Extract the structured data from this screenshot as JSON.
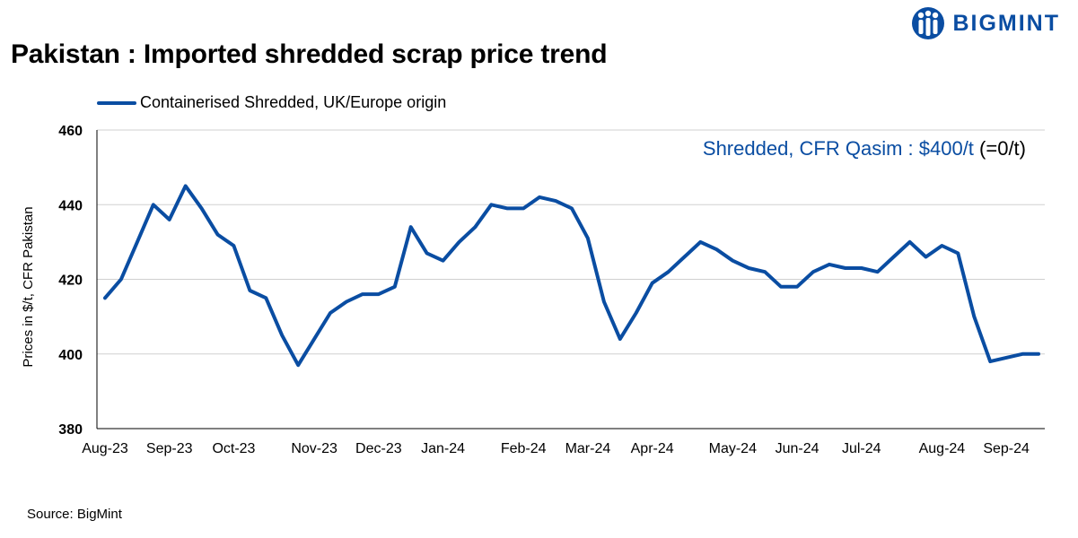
{
  "title": "Pakistan : Imported shredded scrap price trend",
  "brand": "BIGMINT",
  "source": "Source: BigMint",
  "colors": {
    "series": "#0a4da2",
    "grid": "#d0d0d0",
    "axis": "#000000"
  },
  "annotation": {
    "label": "Shredded, CFR Qasim : $400/t",
    "change": " (=0/t)"
  },
  "chart_data": {
    "type": "line",
    "title": "Pakistan : Imported shredded scrap price trend",
    "ylabel": "Prices in $/t, CFR Pakistan",
    "xlabel": "",
    "ylim": [
      380,
      460
    ],
    "yticks": [
      380,
      400,
      420,
      440,
      460
    ],
    "grid": true,
    "legend": "top-left",
    "x_tick_labels": [
      {
        "label": "Aug-23",
        "index": 0
      },
      {
        "label": "Sep-23",
        "index": 4
      },
      {
        "label": "Oct-23",
        "index": 8
      },
      {
        "label": "Nov-23",
        "index": 13
      },
      {
        "label": "Dec-23",
        "index": 17
      },
      {
        "label": "Jan-24",
        "index": 21
      },
      {
        "label": "Feb-24",
        "index": 26
      },
      {
        "label": "Mar-24",
        "index": 30
      },
      {
        "label": "Apr-24",
        "index": 34
      },
      {
        "label": "May-24",
        "index": 39
      },
      {
        "label": "Jun-24",
        "index": 43
      },
      {
        "label": "Jul-24",
        "index": 47
      },
      {
        "label": "Aug-24",
        "index": 52
      },
      {
        "label": "Sep-24",
        "index": 56
      }
    ],
    "series": [
      {
        "name": "Containerised Shredded, UK/Europe origin",
        "values": [
          415,
          420,
          430,
          440,
          436,
          445,
          439,
          432,
          429,
          417,
          415,
          405,
          397,
          404,
          411,
          414,
          416,
          416,
          418,
          434,
          427,
          425,
          430,
          434,
          440,
          439,
          439,
          442,
          441,
          439,
          431,
          414,
          404,
          411,
          419,
          422,
          426,
          430,
          428,
          425,
          423,
          422,
          418,
          418,
          422,
          424,
          423,
          423,
          422,
          426,
          430,
          426,
          429,
          427,
          410,
          398,
          399,
          400,
          400
        ]
      }
    ]
  }
}
